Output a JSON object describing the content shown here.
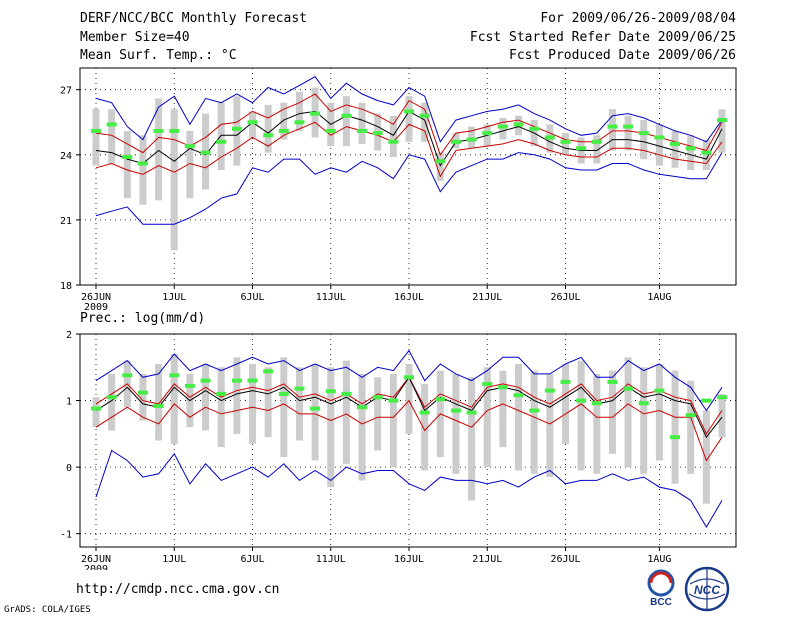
{
  "header": {
    "title": "DERF/NCC/BCC Monthly Forecast",
    "member_size": "Member Size=40",
    "variable": "Mean Surf. Temp.: °C",
    "period": "For 2009/06/26-2009/08/04",
    "started": "Fcst Started Refer Date 2009/06/25",
    "produced": "Fcst Produced Date 2009/06/26"
  },
  "footer": {
    "url": "http://cmdp.ncc.cma.gov.cn",
    "grads": "GrADS: COLA/IGES",
    "logo_left_text": "BCC",
    "logo_right_text": "NCC"
  },
  "colors": {
    "envelope": "#0000cc",
    "spread": "#cc0000",
    "mean": "#000000",
    "marker": "#44ee44",
    "bar": "#cccccc"
  },
  "chart_data": [
    {
      "type": "line",
      "title": "Mean Surf. Temp.: °C",
      "ylim": [
        18,
        28
      ],
      "yticks": [
        18,
        21,
        24,
        27
      ],
      "xticks": [
        {
          "day": 0,
          "label": "26JUN",
          "sublabel": "2009"
        },
        {
          "day": 5,
          "label": "1JUL"
        },
        {
          "day": 10,
          "label": "6JUL"
        },
        {
          "day": 15,
          "label": "11JUL"
        },
        {
          "day": 20,
          "label": "16JUL"
        },
        {
          "day": 25,
          "label": "21JUL"
        },
        {
          "day": 30,
          "label": "26JUL"
        },
        {
          "day": 36,
          "label": "1AUG"
        }
      ],
      "series": [
        {
          "name": "max",
          "color": "#0000cc",
          "values": [
            26.6,
            26.4,
            25.3,
            24.7,
            26.2,
            26.7,
            25.4,
            26.6,
            26.4,
            26.8,
            26.4,
            27.1,
            26.8,
            27.2,
            27.6,
            26.6,
            27.3,
            26.8,
            26.5,
            26.3,
            27.1,
            26.7,
            24.6,
            25.6,
            25.8,
            26.0,
            26.1,
            26.3,
            25.9,
            25.6,
            25.2,
            24.9,
            25.0,
            25.8,
            25.9,
            25.7,
            25.4,
            25.1,
            24.9,
            24.6,
            25.6
          ]
        },
        {
          "name": "upper",
          "color": "#cc0000",
          "values": [
            25.0,
            24.9,
            24.5,
            24.1,
            24.8,
            24.7,
            24.4,
            24.8,
            25.4,
            25.5,
            26.0,
            25.7,
            26.1,
            26.4,
            26.8,
            26.0,
            26.3,
            26.1,
            25.8,
            25.4,
            26.5,
            26.1,
            24.0,
            25.0,
            25.1,
            25.3,
            25.5,
            25.6,
            25.3,
            25.0,
            24.7,
            24.6,
            24.6,
            25.1,
            25.1,
            25.0,
            24.8,
            24.6,
            24.4,
            24.2,
            25.5
          ]
        },
        {
          "name": "mean",
          "color": "#000000",
          "values": [
            24.2,
            24.1,
            23.8,
            23.6,
            24.2,
            23.7,
            24.3,
            24.0,
            24.9,
            24.9,
            25.5,
            25.0,
            25.6,
            25.9,
            26.0,
            25.4,
            25.8,
            25.6,
            25.3,
            24.9,
            26.0,
            25.6,
            23.5,
            24.6,
            24.7,
            24.9,
            25.1,
            25.3,
            25.0,
            24.6,
            24.3,
            24.2,
            24.2,
            24.7,
            24.7,
            24.6,
            24.4,
            24.2,
            24.0,
            23.8,
            25.2
          ]
        },
        {
          "name": "lower",
          "color": "#cc0000",
          "values": [
            23.4,
            23.6,
            23.3,
            23.1,
            23.5,
            23.2,
            23.6,
            23.4,
            23.9,
            24.3,
            24.8,
            24.4,
            24.9,
            25.2,
            25.5,
            24.9,
            25.3,
            25.1,
            24.9,
            24.6,
            25.4,
            25.1,
            23.0,
            24.2,
            24.3,
            24.4,
            24.5,
            24.7,
            24.5,
            24.2,
            24.0,
            23.9,
            23.9,
            24.3,
            24.3,
            24.2,
            24.0,
            23.8,
            23.7,
            23.6,
            24.6
          ]
        },
        {
          "name": "min",
          "color": "#0000cc",
          "values": [
            21.2,
            21.4,
            21.6,
            20.8,
            20.8,
            20.8,
            21.1,
            21.5,
            22.0,
            22.2,
            23.4,
            23.2,
            23.8,
            23.8,
            23.1,
            23.4,
            23.2,
            23.7,
            23.4,
            22.9,
            24.0,
            23.8,
            22.3,
            23.2,
            23.5,
            23.8,
            23.8,
            24.1,
            24.0,
            23.8,
            23.4,
            23.3,
            23.3,
            23.6,
            23.6,
            23.3,
            23.1,
            23.0,
            22.9,
            22.9,
            24.1
          ]
        }
      ],
      "bars": {
        "name": "ensemble spread",
        "low": [
          23.5,
          23.6,
          22.0,
          21.7,
          21.9,
          19.6,
          22.0,
          22.4,
          23.3,
          23.5,
          24.8,
          24.1,
          24.7,
          25.1,
          24.8,
          24.4,
          24.4,
          24.5,
          24.2,
          23.9,
          24.6,
          24.6,
          22.8,
          24.3,
          24.3,
          24.4,
          24.7,
          24.9,
          24.4,
          24.1,
          24.0,
          23.6,
          23.6,
          24.2,
          24.2,
          23.8,
          23.5,
          23.4,
          23.3,
          23.3,
          24.1
        ],
        "high": [
          26.1,
          26.1,
          25.1,
          24.9,
          26.6,
          26.1,
          25.1,
          25.9,
          26.4,
          26.7,
          26.0,
          26.3,
          26.4,
          26.9,
          27.1,
          26.4,
          26.7,
          26.4,
          25.9,
          25.8,
          26.7,
          26.4,
          24.1,
          25.0,
          25.3,
          25.4,
          25.7,
          25.8,
          25.6,
          25.4,
          25.0,
          24.8,
          24.9,
          26.1,
          25.8,
          25.6,
          25.4,
          25.1,
          24.9,
          24.7,
          26.1
        ]
      },
      "markers": {
        "name": "observed",
        "values": [
          25.1,
          25.4,
          23.9,
          23.6,
          25.1,
          25.1,
          24.4,
          24.1,
          24.6,
          25.2,
          25.5,
          24.9,
          25.1,
          25.5,
          25.9,
          25.1,
          25.8,
          25.1,
          25.0,
          24.6,
          26.0,
          25.8,
          23.7,
          24.6,
          24.7,
          25.0,
          25.3,
          25.4,
          25.2,
          24.8,
          24.6,
          24.3,
          24.6,
          25.3,
          25.3,
          25.0,
          24.8,
          24.5,
          24.3,
          24.1,
          25.6
        ]
      }
    },
    {
      "type": "line",
      "title": "Prec.: log(mm/d)",
      "ylim": [
        -1.2,
        2.0
      ],
      "yticks": [
        -1,
        0,
        1,
        2
      ],
      "xticks": [
        {
          "day": 0,
          "label": "26JUN",
          "sublabel": "2009"
        },
        {
          "day": 5,
          "label": "1JUL"
        },
        {
          "day": 10,
          "label": "6JUL"
        },
        {
          "day": 15,
          "label": "11JUL"
        },
        {
          "day": 20,
          "label": "16JUL"
        },
        {
          "day": 25,
          "label": "21JUL"
        },
        {
          "day": 30,
          "label": "26JUL"
        },
        {
          "day": 36,
          "label": "1AUG"
        }
      ],
      "series": [
        {
          "name": "max",
          "color": "#0000cc",
          "values": [
            1.3,
            1.45,
            1.6,
            1.35,
            1.4,
            1.7,
            1.45,
            1.55,
            1.45,
            1.55,
            1.65,
            1.55,
            1.6,
            1.45,
            1.55,
            1.45,
            1.5,
            1.35,
            1.5,
            1.45,
            1.75,
            1.3,
            1.55,
            1.4,
            1.3,
            1.45,
            1.65,
            1.65,
            1.4,
            1.4,
            1.55,
            1.65,
            1.35,
            1.35,
            1.6,
            1.45,
            1.55,
            1.35,
            1.2,
            0.85,
            1.2
          ]
        },
        {
          "name": "upper",
          "color": "#cc0000",
          "values": [
            0.95,
            1.1,
            1.25,
            1.0,
            0.95,
            1.25,
            1.05,
            1.2,
            1.05,
            1.15,
            1.2,
            1.15,
            1.25,
            1.05,
            1.1,
            1.0,
            1.1,
            0.95,
            1.1,
            1.05,
            1.35,
            0.9,
            1.1,
            1.0,
            0.9,
            1.2,
            1.25,
            1.2,
            1.05,
            0.95,
            1.1,
            1.25,
            1.0,
            1.05,
            1.25,
            1.1,
            1.15,
            1.05,
            1.0,
            0.5,
            0.85
          ]
        },
        {
          "name": "mean",
          "color": "#000000",
          "values": [
            0.85,
            1.0,
            1.2,
            0.95,
            0.9,
            1.2,
            1.0,
            1.15,
            1.0,
            1.1,
            1.15,
            1.1,
            1.2,
            1.0,
            1.05,
            0.95,
            1.05,
            0.9,
            1.05,
            1.0,
            1.35,
            0.85,
            1.05,
            0.95,
            0.85,
            1.15,
            1.2,
            1.15,
            1.0,
            0.9,
            1.05,
            1.2,
            0.95,
            1.0,
            1.2,
            1.05,
            1.1,
            1.0,
            0.95,
            0.45,
            0.75
          ]
        },
        {
          "name": "lower",
          "color": "#cc0000",
          "values": [
            0.6,
            0.75,
            0.9,
            0.75,
            0.65,
            0.95,
            0.75,
            0.9,
            0.8,
            0.85,
            0.9,
            0.85,
            0.95,
            0.8,
            0.8,
            0.7,
            0.8,
            0.65,
            0.75,
            0.75,
            1.0,
            0.55,
            0.8,
            0.7,
            0.6,
            0.85,
            0.95,
            0.85,
            0.75,
            0.65,
            0.8,
            0.95,
            0.75,
            0.75,
            0.95,
            0.8,
            0.85,
            0.75,
            0.75,
            0.1,
            0.45
          ]
        },
        {
          "name": "min",
          "color": "#0000cc",
          "values": [
            -0.45,
            0.25,
            0.1,
            -0.15,
            -0.1,
            0.2,
            -0.25,
            0.05,
            -0.2,
            -0.1,
            0.0,
            -0.15,
            0.05,
            -0.2,
            -0.05,
            -0.2,
            0.0,
            -0.1,
            -0.05,
            -0.05,
            -0.25,
            -0.35,
            -0.15,
            -0.2,
            -0.2,
            -0.25,
            -0.2,
            -0.3,
            -0.15,
            -0.05,
            -0.25,
            -0.2,
            -0.2,
            -0.1,
            -0.2,
            -0.15,
            -0.3,
            -0.35,
            -0.5,
            -0.9,
            -0.5
          ]
        },
        {
          "name": "min2",
          "color": "#0000cc",
          "values": []
        }
      ],
      "bars": {
        "name": "ensemble spread",
        "low": [
          0.6,
          0.55,
          0.9,
          0.7,
          0.4,
          0.35,
          0.6,
          0.55,
          0.3,
          0.5,
          0.35,
          0.45,
          0.15,
          0.4,
          0.1,
          -0.3,
          0.05,
          -0.2,
          0.25,
          0.0,
          0.5,
          -0.05,
          0.15,
          -0.1,
          -0.5,
          0.0,
          0.3,
          -0.05,
          -0.1,
          -0.15,
          0.35,
          -0.05,
          -0.1,
          0.2,
          0.0,
          -0.1,
          0.1,
          -0.25,
          -0.1,
          -0.55,
          0.45
        ],
        "high": [
          1.05,
          1.4,
          1.6,
          1.4,
          1.55,
          1.7,
          1.4,
          1.55,
          1.5,
          1.65,
          1.55,
          1.5,
          1.65,
          1.5,
          1.55,
          1.5,
          1.6,
          1.4,
          1.35,
          1.4,
          1.55,
          1.25,
          1.45,
          1.4,
          1.35,
          1.5,
          1.45,
          1.55,
          1.45,
          1.4,
          1.55,
          1.6,
          1.4,
          1.45,
          1.65,
          1.5,
          1.55,
          1.45,
          1.3,
          0.85,
          1.1
        ]
      },
      "markers": {
        "name": "observed",
        "values": [
          0.88,
          1.05,
          1.38,
          1.12,
          0.92,
          1.38,
          1.22,
          1.3,
          1.1,
          1.3,
          1.3,
          1.44,
          1.1,
          1.18,
          0.88,
          1.14,
          1.1,
          0.9,
          1.05,
          1.0,
          1.35,
          0.82,
          1.02,
          0.85,
          0.82,
          1.25,
          1.2,
          1.08,
          0.85,
          1.15,
          1.28,
          1.0,
          0.96,
          1.28,
          1.18,
          0.96,
          1.15,
          0.45,
          0.78,
          1.0,
          1.05
        ]
      }
    }
  ]
}
